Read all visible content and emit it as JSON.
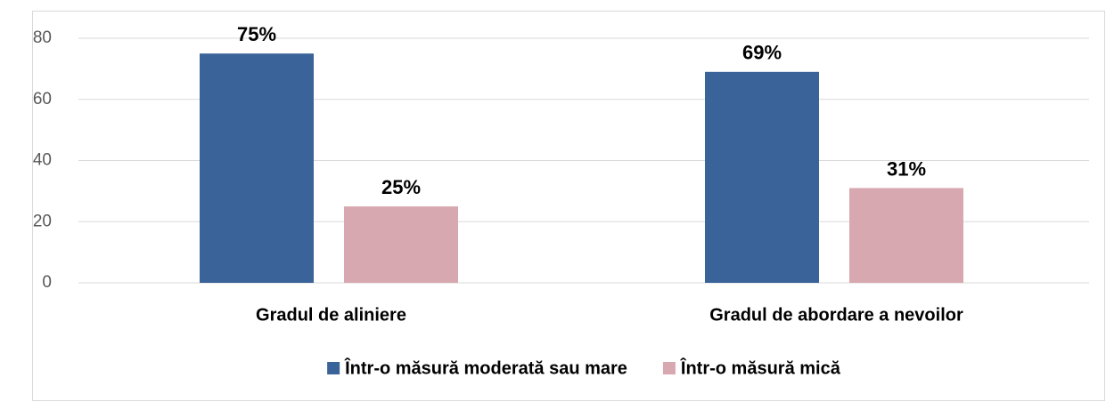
{
  "chart_data": {
    "type": "bar",
    "categories": [
      "Gradul de aliniere",
      "Gradul de abordare a nevoilor"
    ],
    "series": [
      {
        "name": "Într-o măsură moderată sau mare",
        "color": "#3a6399",
        "values": [
          75,
          69
        ],
        "value_labels": [
          "75%",
          "69%"
        ]
      },
      {
        "name": "Într-o măsură mică",
        "color": "#d8a8b0",
        "values": [
          25,
          31
        ],
        "value_labels": [
          "25%",
          "31%"
        ]
      }
    ],
    "ylim": [
      0,
      80
    ],
    "yticks": [
      0,
      20,
      40,
      60,
      80
    ],
    "grid": true,
    "legend": "bottom"
  }
}
